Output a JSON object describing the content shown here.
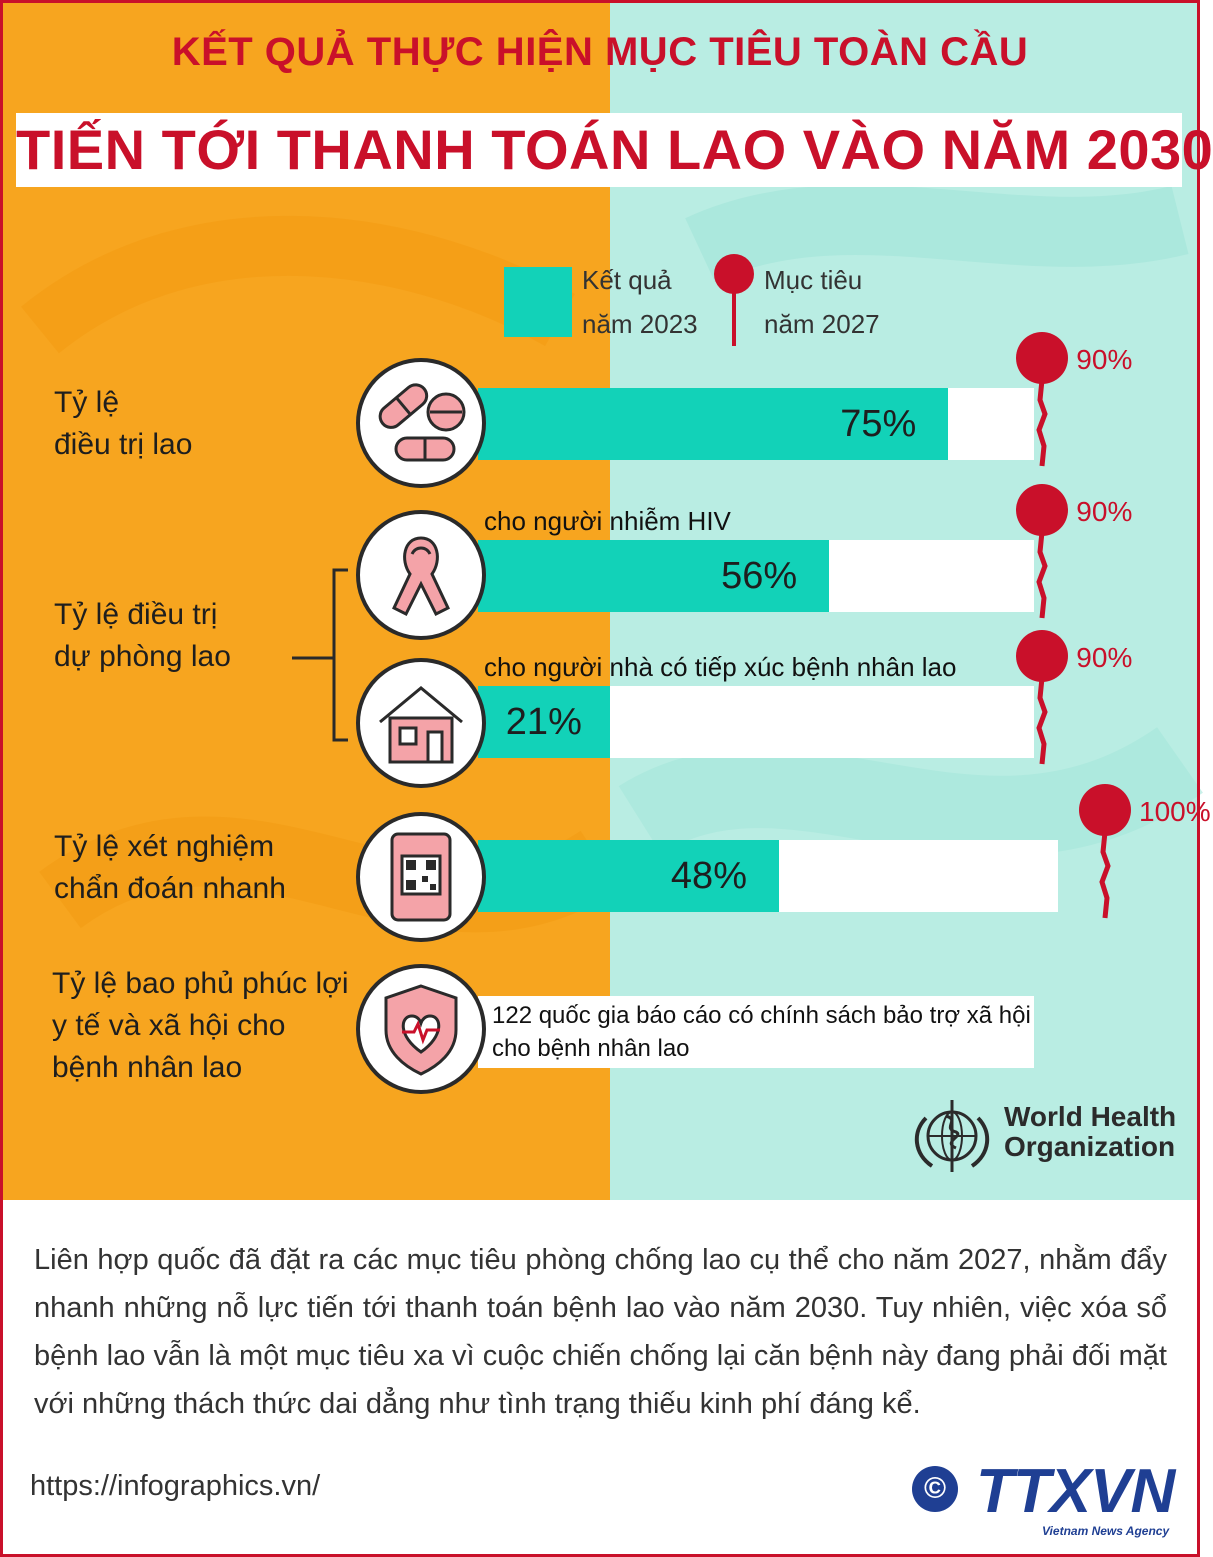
{
  "header": {
    "kicker": "KẾT QUẢ THỰC HIỆN MỤC TIÊU TOÀN CẦU",
    "title": "TIẾN TỚI THANH TOÁN  LAO VÀO NĂM 2030"
  },
  "legend": {
    "result_line1": "Kết quả",
    "result_line2": "năm 2023",
    "target_line1": "Mục tiêu",
    "target_line2": "năm 2027"
  },
  "labels": {
    "treatment_line1": "Tỷ lệ",
    "treatment_line2": "điều trị lao",
    "preventive_line1": "Tỷ lệ điều trị",
    "preventive_line2": "dự phòng lao",
    "rapid_line1": "Tỷ lệ xét nghiệm",
    "rapid_line2": "chẩn đoán nhanh",
    "welfare_line1": "Tỷ lệ bao phủ phúc lợi",
    "welfare_line2": "y tế và xã hội cho",
    "welfare_line3": "bệnh nhân lao"
  },
  "chart_data": {
    "type": "bar",
    "orientation": "horizontal",
    "categories": [
      "Tỷ lệ điều trị lao",
      "cho người nhiễm HIV",
      "cho người nhà có tiếp xúc bệnh nhân lao",
      "Tỷ lệ xét nghiệm chẩn đoán nhanh"
    ],
    "series": [
      {
        "name": "Kết quả năm 2023",
        "values": [
          75,
          56,
          21,
          48
        ]
      },
      {
        "name": "Mục tiêu năm 2027",
        "values": [
          90,
          90,
          90,
          100
        ]
      }
    ],
    "value_labels": [
      "75%",
      "56%",
      "21%",
      "48%"
    ],
    "target_labels": [
      "90%",
      "90%",
      "90%",
      "100%"
    ],
    "xlim": [
      0,
      100
    ],
    "unit": "%",
    "legend_position": "top",
    "welfare_note_line1": "122 quốc gia báo cáo có chính sách bảo trợ xã hội",
    "welfare_note_line2": "cho bệnh nhân lao"
  },
  "icons": [
    "pills-icon",
    "ribbon-icon",
    "house-icon",
    "qr-code-icon",
    "shield-heart-icon",
    "map-pin-icon",
    "who-emblem-icon"
  ],
  "colors": {
    "accent_red": "#c9102a",
    "bar_teal": "#12d2b8",
    "bg_orange": "#f7a51f",
    "bg_mint": "#b9ede3",
    "ttxvn_blue": "#1f3f93"
  },
  "who": {
    "line1": "World Health",
    "line2": "Organization"
  },
  "summary": "Liên hợp quốc đã đặt ra các mục tiêu phòng chống lao cụ thể cho năm 2027, nhằm đẩy nhanh những nỗ lực tiến tới thanh toán bệnh lao vào năm 2030. Tuy nhiên, việc xóa sổ bệnh lao vẫn là một mục tiêu xa vì cuộc chiến chống lại căn bệnh này đang phải đối mặt với những thách thức dai dẳng như tình trạng thiếu kinh phí đáng kể.",
  "footer": {
    "source": "https://infographics.vn/",
    "copyright": "©",
    "brand": "TTXVN",
    "brand_sub": "Vietnam News Agency"
  }
}
